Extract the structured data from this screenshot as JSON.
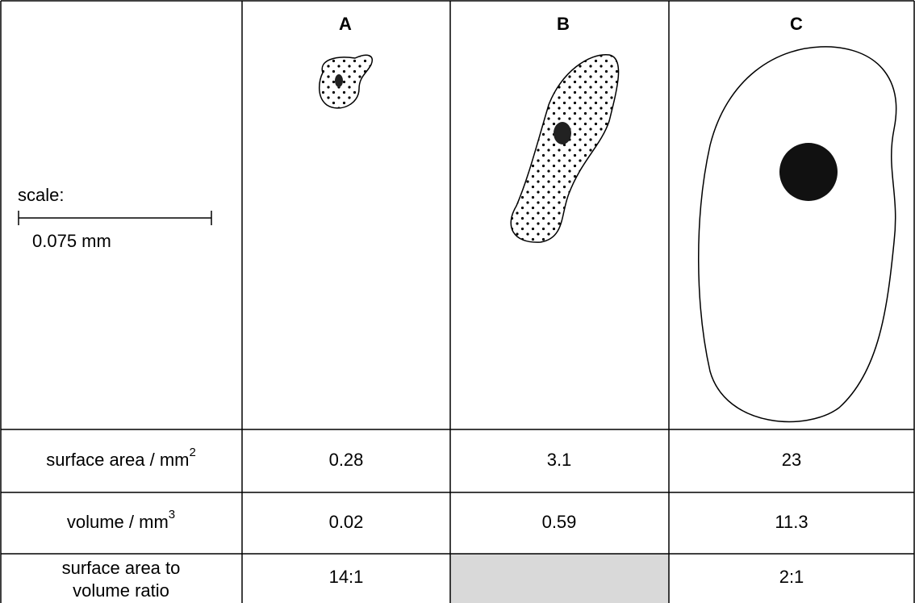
{
  "header": {
    "scale_label": "scale:",
    "scale_length": "0.075 mm",
    "columns": [
      "A",
      "B",
      "C"
    ]
  },
  "table": {
    "rows": [
      {
        "label": "surface area / mm",
        "power": "2",
        "values": [
          "0.28",
          "3.1",
          "23"
        ]
      },
      {
        "label": "volume / mm",
        "power": "3",
        "values": [
          "0.02",
          "0.59",
          "11.3"
        ]
      },
      {
        "label_lines": [
          "surface area to",
          "volume ratio"
        ],
        "values": [
          "14:1",
          null,
          "2:1"
        ]
      }
    ]
  }
}
